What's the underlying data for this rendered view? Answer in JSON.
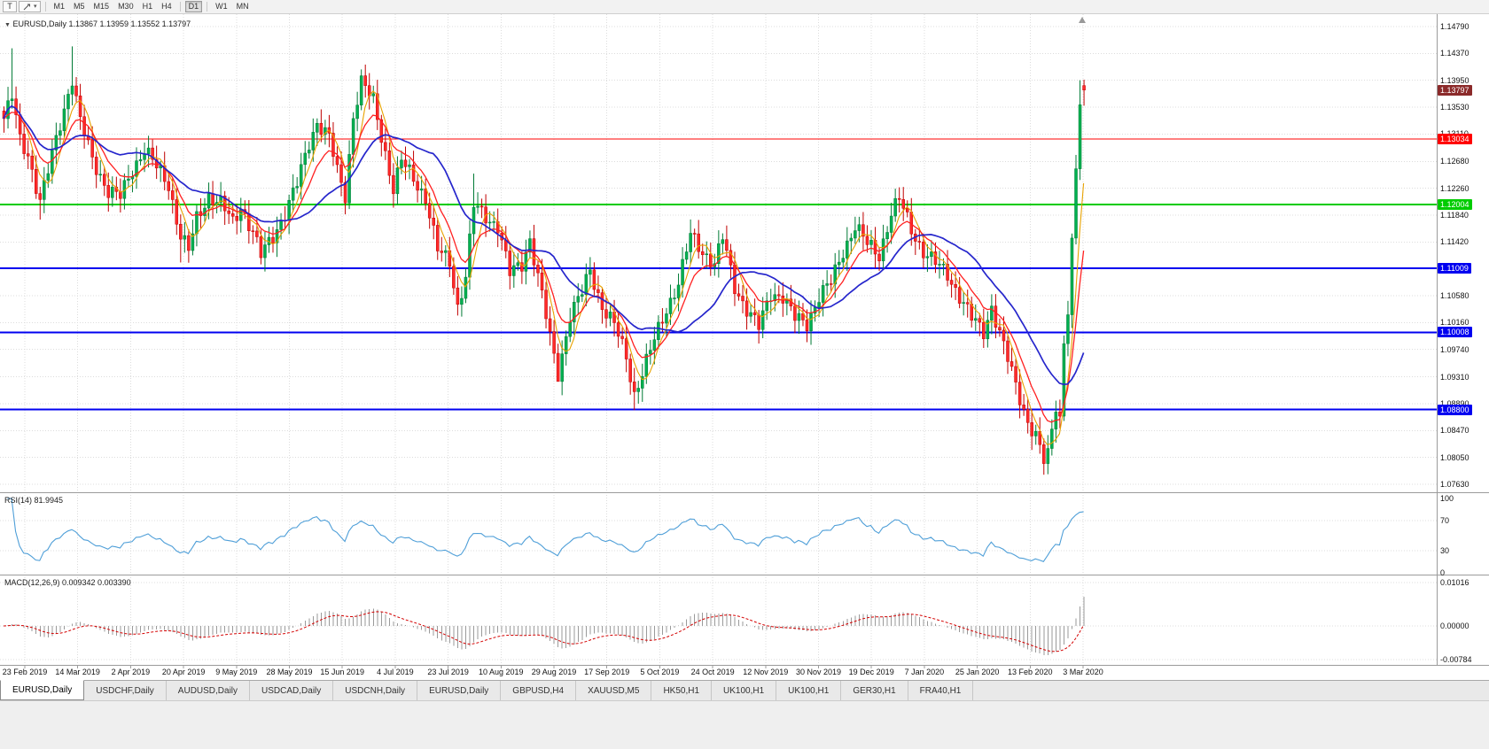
{
  "toolbar": {
    "text_tool_label": "T",
    "timeframes": [
      "M1",
      "M5",
      "M15",
      "M30",
      "H1",
      "H4",
      "D1",
      "W1",
      "MN"
    ],
    "active_timeframe": "D1"
  },
  "chart": {
    "symbol_label": "EURUSD,Daily",
    "ohlc_label": "1.13867 1.13959 1.13552 1.13797",
    "colors": {
      "bull": "#00b050",
      "bull_border": "#007a35",
      "bear": "#ff2a2a",
      "bear_border": "#c00000",
      "grid": "#dcdcdc",
      "separator": "#9b9b9b"
    },
    "price_axis_labels": [
      1.1479,
      1.1437,
      1.1395,
      1.1353,
      1.1311,
      1.1268,
      1.1226,
      1.1184,
      1.1142,
      1.11,
      1.1058,
      1.1016,
      1.0974,
      1.0931,
      1.0889,
      1.0847,
      1.0805,
      1.0763
    ],
    "levels": [
      {
        "label": "1.13034",
        "price": 1.13034,
        "color": "#ff0000",
        "width": 1
      },
      {
        "label": "1.12004",
        "price": 1.12004,
        "color": "#00cc00",
        "width": 2
      },
      {
        "label": "1.11009",
        "price": 1.11009,
        "color": "#0000f0",
        "width": 2
      },
      {
        "label": "1.10008",
        "price": 1.10008,
        "color": "#0000f0",
        "width": 2
      },
      {
        "label": "1.08800",
        "price": 1.088,
        "color": "#0000f0",
        "width": 2
      }
    ],
    "current_price": {
      "label": "1.13797",
      "price": 1.13797,
      "color": "#8b2a2a"
    }
  },
  "chart_data": {
    "type": "candlestick",
    "symbol": "EURUSD",
    "timeframe": "Daily",
    "candle_count": 270,
    "y_range": [
      1.0751,
      1.1498
    ],
    "keyframes": [
      [
        0,
        1.1335
      ],
      [
        2,
        1.1368
      ],
      [
        4,
        1.1302
      ],
      [
        6,
        1.128
      ],
      [
        9,
        1.1205
      ],
      [
        11,
        1.1252
      ],
      [
        14,
        1.1328
      ],
      [
        17,
        1.1398
      ],
      [
        19,
        1.133
      ],
      [
        22,
        1.1272
      ],
      [
        26,
        1.1222
      ],
      [
        29,
        1.1212
      ],
      [
        32,
        1.1256
      ],
      [
        35,
        1.1288
      ],
      [
        38,
        1.1258
      ],
      [
        41,
        1.1232
      ],
      [
        44,
        1.1152
      ],
      [
        46,
        1.1128
      ],
      [
        48,
        1.1178
      ],
      [
        51,
        1.1215
      ],
      [
        54,
        1.1202
      ],
      [
        57,
        1.1172
      ],
      [
        59,
        1.1198
      ],
      [
        62,
        1.1158
      ],
      [
        64,
        1.112
      ],
      [
        67,
        1.1152
      ],
      [
        70,
        1.1188
      ],
      [
        73,
        1.1232
      ],
      [
        76,
        1.1298
      ],
      [
        78,
        1.133
      ],
      [
        81,
        1.1305
      ],
      [
        83,
        1.1252
      ],
      [
        85,
        1.1215
      ],
      [
        87,
        1.134
      ],
      [
        89,
        1.1392
      ],
      [
        92,
        1.1362
      ],
      [
        95,
        1.1282
      ],
      [
        97,
        1.1225
      ],
      [
        99,
        1.1268
      ],
      [
        102,
        1.1242
      ],
      [
        105,
        1.1212
      ],
      [
        108,
        1.1128
      ],
      [
        111,
        1.1112
      ],
      [
        113,
        1.1042
      ],
      [
        115,
        1.1088
      ],
      [
        117,
        1.1198
      ],
      [
        120,
        1.1182
      ],
      [
        123,
        1.1168
      ],
      [
        126,
        1.1092
      ],
      [
        129,
        1.1108
      ],
      [
        131,
        1.1148
      ],
      [
        134,
        1.1058
      ],
      [
        136,
        1.0992
      ],
      [
        138,
        1.0936
      ],
      [
        141,
        1.1028
      ],
      [
        144,
        1.1062
      ],
      [
        146,
        1.1098
      ],
      [
        149,
        1.1042
      ],
      [
        152,
        1.1012
      ],
      [
        155,
        1.0962
      ],
      [
        157,
        1.0905
      ],
      [
        159,
        1.0938
      ],
      [
        162,
        1.0988
      ],
      [
        165,
        1.1038
      ],
      [
        168,
        1.1078
      ],
      [
        171,
        1.1152
      ],
      [
        174,
        1.1128
      ],
      [
        177,
        1.1108
      ],
      [
        179,
        1.1148
      ],
      [
        182,
        1.1072
      ],
      [
        185,
        1.1038
      ],
      [
        188,
        1.1008
      ],
      [
        191,
        1.1062
      ],
      [
        194,
        1.1058
      ],
      [
        197,
        1.1022
      ],
      [
        200,
        1.1015
      ],
      [
        203,
        1.1058
      ],
      [
        206,
        1.1078
      ],
      [
        209,
        1.1128
      ],
      [
        212,
        1.1168
      ],
      [
        215,
        1.1138
      ],
      [
        218,
        1.1122
      ],
      [
        221,
        1.1188
      ],
      [
        223,
        1.1208
      ],
      [
        226,
        1.1162
      ],
      [
        229,
        1.1128
      ],
      [
        232,
        1.1108
      ],
      [
        235,
        1.1092
      ],
      [
        238,
        1.1058
      ],
      [
        241,
        1.1022
      ],
      [
        244,
        1.1002
      ],
      [
        246,
        1.1042
      ],
      [
        249,
        1.0978
      ],
      [
        252,
        1.0918
      ],
      [
        255,
        1.0862
      ],
      [
        257,
        1.0838
      ],
      [
        259,
        1.0798
      ],
      [
        260,
        1.0808
      ],
      [
        261,
        1.0848
      ],
      [
        262,
        1.0888
      ],
      [
        263,
        1.0868
      ],
      [
        264,
        1.0988
      ],
      [
        265,
        1.1038
      ],
      [
        266,
        1.1138
      ],
      [
        267,
        1.1252
      ],
      [
        268,
        1.1358
      ],
      [
        269,
        1.13797
      ]
    ],
    "wick_overrides": {
      "2": {
        "high": 1.1445
      },
      "9": {
        "low": 1.1177
      },
      "17": {
        "high": 1.1448
      },
      "44": {
        "low": 1.111
      },
      "64": {
        "low": 1.1107
      },
      "89": {
        "high": 1.1412
      },
      "113": {
        "low": 1.1027
      },
      "117": {
        "high": 1.1249
      },
      "138": {
        "low": 1.0926
      },
      "157": {
        "low": 1.0879
      },
      "259": {
        "low": 1.0778
      },
      "268": {
        "high": 1.1395
      }
    },
    "last_candle": {
      "open": 1.13867,
      "high": 1.13959,
      "low": 1.13552,
      "close": 1.13797
    },
    "ma": [
      {
        "period": 5,
        "type": "sma",
        "color": "#e8a200",
        "width": 1.1
      },
      {
        "period": 10,
        "type": "ema",
        "color": "#ff2020",
        "width": 1.3
      },
      {
        "period": 22,
        "type": "sma",
        "color": "#2626cc",
        "width": 1.7
      }
    ]
  },
  "rsi": {
    "label": "RSI(14) 81.9945",
    "period": 14,
    "current": 81.9945,
    "color": "#4f9fd8",
    "axis": [
      {
        "label": "100",
        "value": 100
      },
      {
        "label": "70",
        "value": 70
      },
      {
        "label": "30",
        "value": 30
      },
      {
        "label": "0",
        "value": 0
      }
    ],
    "level_lines": [
      70,
      30
    ]
  },
  "macd": {
    "label": "MACD(12,26,9) 0.009342 0.003390",
    "main_value": 0.009342,
    "signal_value": 0.00339,
    "histogram_color": "#9a9a9a",
    "signal_color": "#d40000",
    "axis": [
      {
        "label": "0.01016",
        "value": 0.01016
      },
      {
        "label": "0.00000",
        "value": 0
      },
      {
        "label": "-0.00784",
        "value": -0.00784
      }
    ]
  },
  "date_axis": {
    "labels": [
      "23 Feb 2019",
      "14 Mar 2019",
      "2 Apr 2019",
      "20 Apr 2019",
      "9 May 2019",
      "28 May 2019",
      "15 Jun 2019",
      "4 Jul 2019",
      "23 Jul 2019",
      "10 Aug 2019",
      "29 Aug 2019",
      "17 Sep 2019",
      "5 Oct 2019",
      "24 Oct 2019",
      "12 Nov 2019",
      "30 Nov 2019",
      "19 Dec 2019",
      "7 Jan 2020",
      "25 Jan 2020",
      "13 Feb 2020",
      "3 Mar 2020"
    ]
  },
  "tabbar": {
    "active_index": 0,
    "tabs": [
      "EURUSD,Daily",
      "USDCHF,Daily",
      "AUDUSD,Daily",
      "USDCAD,Daily",
      "USDCNH,Daily",
      "EURUSD,Daily",
      "GBPUSD,H4",
      "XAUUSD,M5",
      "HK50,H1",
      "UK100,H1",
      "UK100,H1",
      "GER30,H1",
      "FRA40,H1"
    ]
  }
}
